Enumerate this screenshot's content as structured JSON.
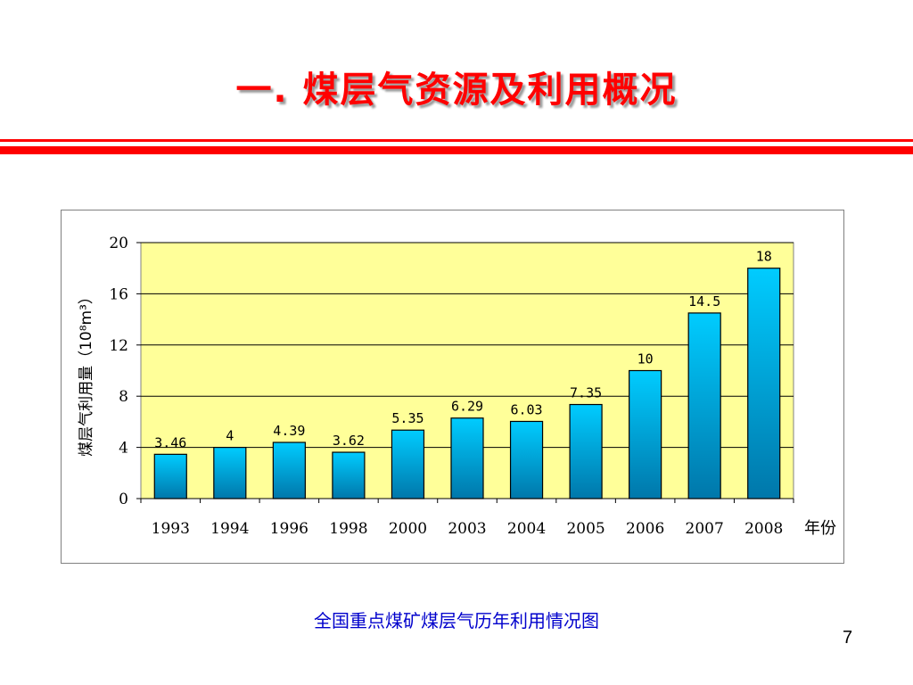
{
  "slide": {
    "title": "一. 煤层气资源及利用概况",
    "caption": "全国重点煤矿煤层气历年利用情况图",
    "page_number": "7"
  },
  "colors": {
    "title": "#ff0000",
    "rule": "#ff0000",
    "plot_background": "#ffff99",
    "bar_top": "#00ccff",
    "bar_bottom": "#0077aa",
    "caption": "#0000cc"
  },
  "chart_data": {
    "type": "bar",
    "title": "",
    "xlabel": "年份",
    "ylabel": "煤层气利用量（10⁸m³）",
    "ylim": [
      0,
      20
    ],
    "yticks": [
      0,
      4,
      8,
      12,
      16,
      20
    ],
    "grid": true,
    "legend": "none",
    "categories": [
      "1993",
      "1994",
      "1996",
      "1998",
      "2000",
      "2003",
      "2004",
      "2005",
      "2006",
      "2007",
      "2008"
    ],
    "values": [
      3.46,
      4,
      4.39,
      3.62,
      5.35,
      6.29,
      6.03,
      7.35,
      10,
      14.5,
      18
    ],
    "data_labels": [
      "3.46",
      "4",
      "4.39",
      "3.62",
      "5.35",
      "6.29",
      "6.03",
      "7.35",
      "10",
      "14.5",
      "18"
    ]
  }
}
